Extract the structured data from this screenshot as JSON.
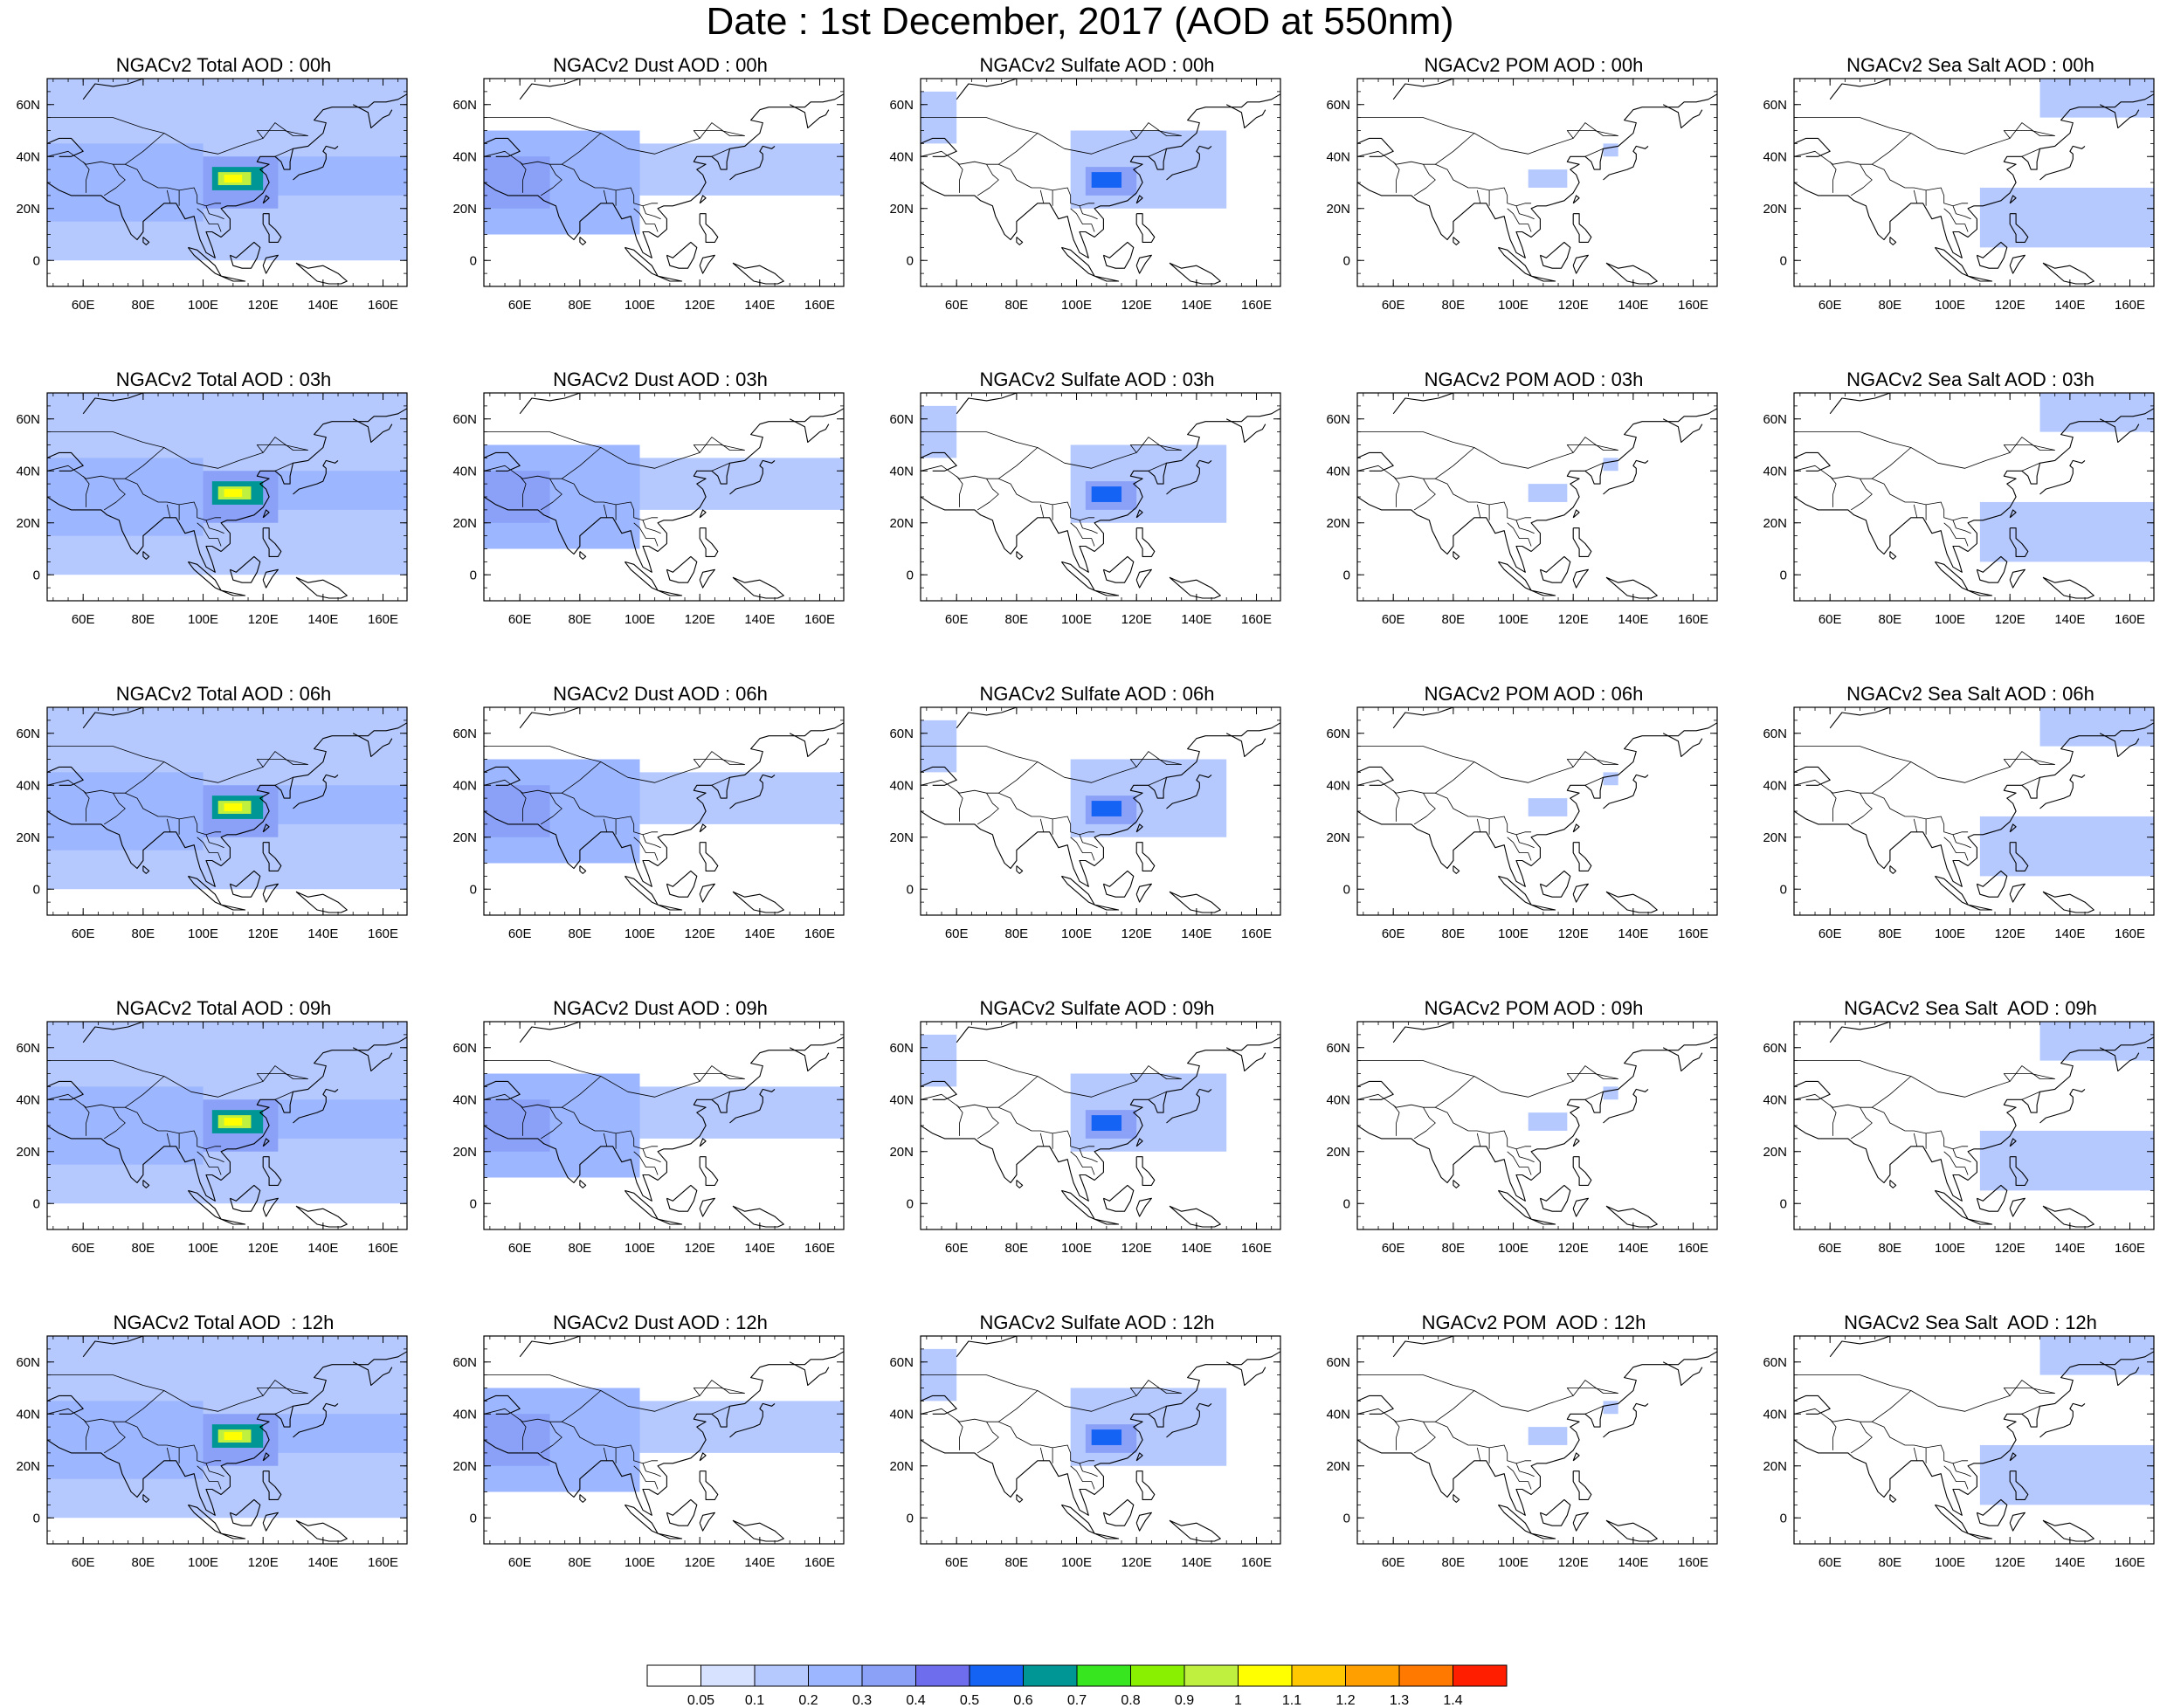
{
  "title": "Date : 1st December, 2017 (AOD at 550nm)",
  "chart_data": {
    "type": "heatmap",
    "title": "Date : 1st December, 2017 (AOD at 550nm)",
    "map_domain": {
      "lon_range": [
        48,
        168
      ],
      "lat_range": [
        -10,
        70
      ]
    },
    "x_ticks": [
      "60E",
      "80E",
      "100E",
      "120E",
      "140E",
      "160E"
    ],
    "y_ticks": [
      "60N",
      "40N",
      "20N",
      "0"
    ],
    "x_tick_values": [
      60,
      80,
      100,
      120,
      140,
      160
    ],
    "y_tick_values": [
      60,
      40,
      20,
      0
    ],
    "colorbar": {
      "levels": [
        "0.05",
        "0.1",
        "0.2",
        "0.3",
        "0.4",
        "0.5",
        "0.6",
        "0.7",
        "0.8",
        "0.9",
        "1",
        "1.1",
        "1.2",
        "1.3",
        "1.4"
      ],
      "colors": [
        "#ffffff",
        "#d6e2ff",
        "#b5c9ff",
        "#9cb6ff",
        "#8aa1f7",
        "#6d6ded",
        "#1463f5",
        "#009696",
        "#37e61e",
        "#88f000",
        "#bff03f",
        "#ffff00",
        "#ffc800",
        "#ffa000",
        "#ff7800",
        "#ff1e00"
      ]
    },
    "times": [
      "00h",
      "03h",
      "06h",
      "09h",
      "12h"
    ],
    "species": [
      "Total",
      "Dust",
      "Sulfate",
      "POM",
      "Sea Salt"
    ],
    "panel_titles": [
      [
        "NGACv2 Total AOD : 00h",
        "NGACv2 Dust AOD : 00h",
        "NGACv2 Sulfate AOD : 00h",
        "NGACv2 POM AOD : 00h",
        "NGACv2 Sea Salt AOD : 00h"
      ],
      [
        "NGACv2 Total AOD : 03h",
        "NGACv2 Dust AOD : 03h",
        "NGACv2 Sulfate AOD : 03h",
        "NGACv2 POM AOD : 03h",
        "NGACv2 Sea Salt AOD : 03h"
      ],
      [
        "NGACv2 Total AOD : 06h",
        "NGACv2 Dust AOD : 06h",
        "NGACv2 Sulfate AOD : 06h",
        "NGACv2 POM AOD : 06h",
        "NGACv2 Sea Salt AOD : 06h"
      ],
      [
        "NGACv2 Total AOD : 09h",
        "NGACv2 Dust AOD : 09h",
        "NGACv2 Sulfate AOD : 09h",
        "NGACv2 POM AOD : 09h",
        "NGACv2 Sea Salt  AOD : 09h"
      ],
      [
        "NGACv2 Total AOD  : 12h",
        "NGACv2 Dust AOD : 12h",
        "NGACv2 Sulfate AOD : 12h",
        "NGACv2 POM  AOD : 12h",
        "NGACv2 Sea Salt  AOD : 12h"
      ]
    ],
    "species_fields": {
      "Total": [
        {
          "lon": [
            48,
            168
          ],
          "lat": [
            0,
            70
          ],
          "aod": 0.1
        },
        {
          "lon": [
            48,
            100
          ],
          "lat": [
            15,
            45
          ],
          "aod": 0.2
        },
        {
          "lon": [
            120,
            168
          ],
          "lat": [
            25,
            40
          ],
          "aod": 0.2
        },
        {
          "lon": [
            100,
            125
          ],
          "lat": [
            20,
            40
          ],
          "aod": 0.3
        },
        {
          "lon": [
            103,
            120
          ],
          "lat": [
            27,
            36
          ],
          "aod": 0.6
        },
        {
          "lon": [
            105,
            116
          ],
          "lat": [
            29,
            34
          ],
          "aod": 0.9
        },
        {
          "lon": [
            107,
            113
          ],
          "lat": [
            30,
            33
          ],
          "aod": 1.0
        }
      ],
      "Dust": [
        {
          "lon": [
            48,
            168
          ],
          "lat": [
            25,
            45
          ],
          "aod": 0.1
        },
        {
          "lon": [
            48,
            100
          ],
          "lat": [
            10,
            50
          ],
          "aod": 0.2
        },
        {
          "lon": [
            48,
            70
          ],
          "lat": [
            20,
            40
          ],
          "aod": 0.3
        }
      ],
      "Sulfate": [
        {
          "lon": [
            48,
            60
          ],
          "lat": [
            45,
            65
          ],
          "aod": 0.1
        },
        {
          "lon": [
            98,
            150
          ],
          "lat": [
            20,
            50
          ],
          "aod": 0.1
        },
        {
          "lon": [
            103,
            120
          ],
          "lat": [
            25,
            36
          ],
          "aod": 0.3
        },
        {
          "lon": [
            105,
            115
          ],
          "lat": [
            28,
            34
          ],
          "aod": 0.5
        }
      ],
      "POM": [
        {
          "lon": [
            105,
            118
          ],
          "lat": [
            28,
            35
          ],
          "aod": 0.1
        },
        {
          "lon": [
            130,
            135
          ],
          "lat": [
            40,
            45
          ],
          "aod": 0.1
        }
      ],
      "Sea Salt": [
        {
          "lon": [
            130,
            168
          ],
          "lat": [
            55,
            70
          ],
          "aod": 0.1
        },
        {
          "lon": [
            110,
            168
          ],
          "lat": [
            5,
            28
          ],
          "aod": 0.1
        }
      ]
    }
  }
}
